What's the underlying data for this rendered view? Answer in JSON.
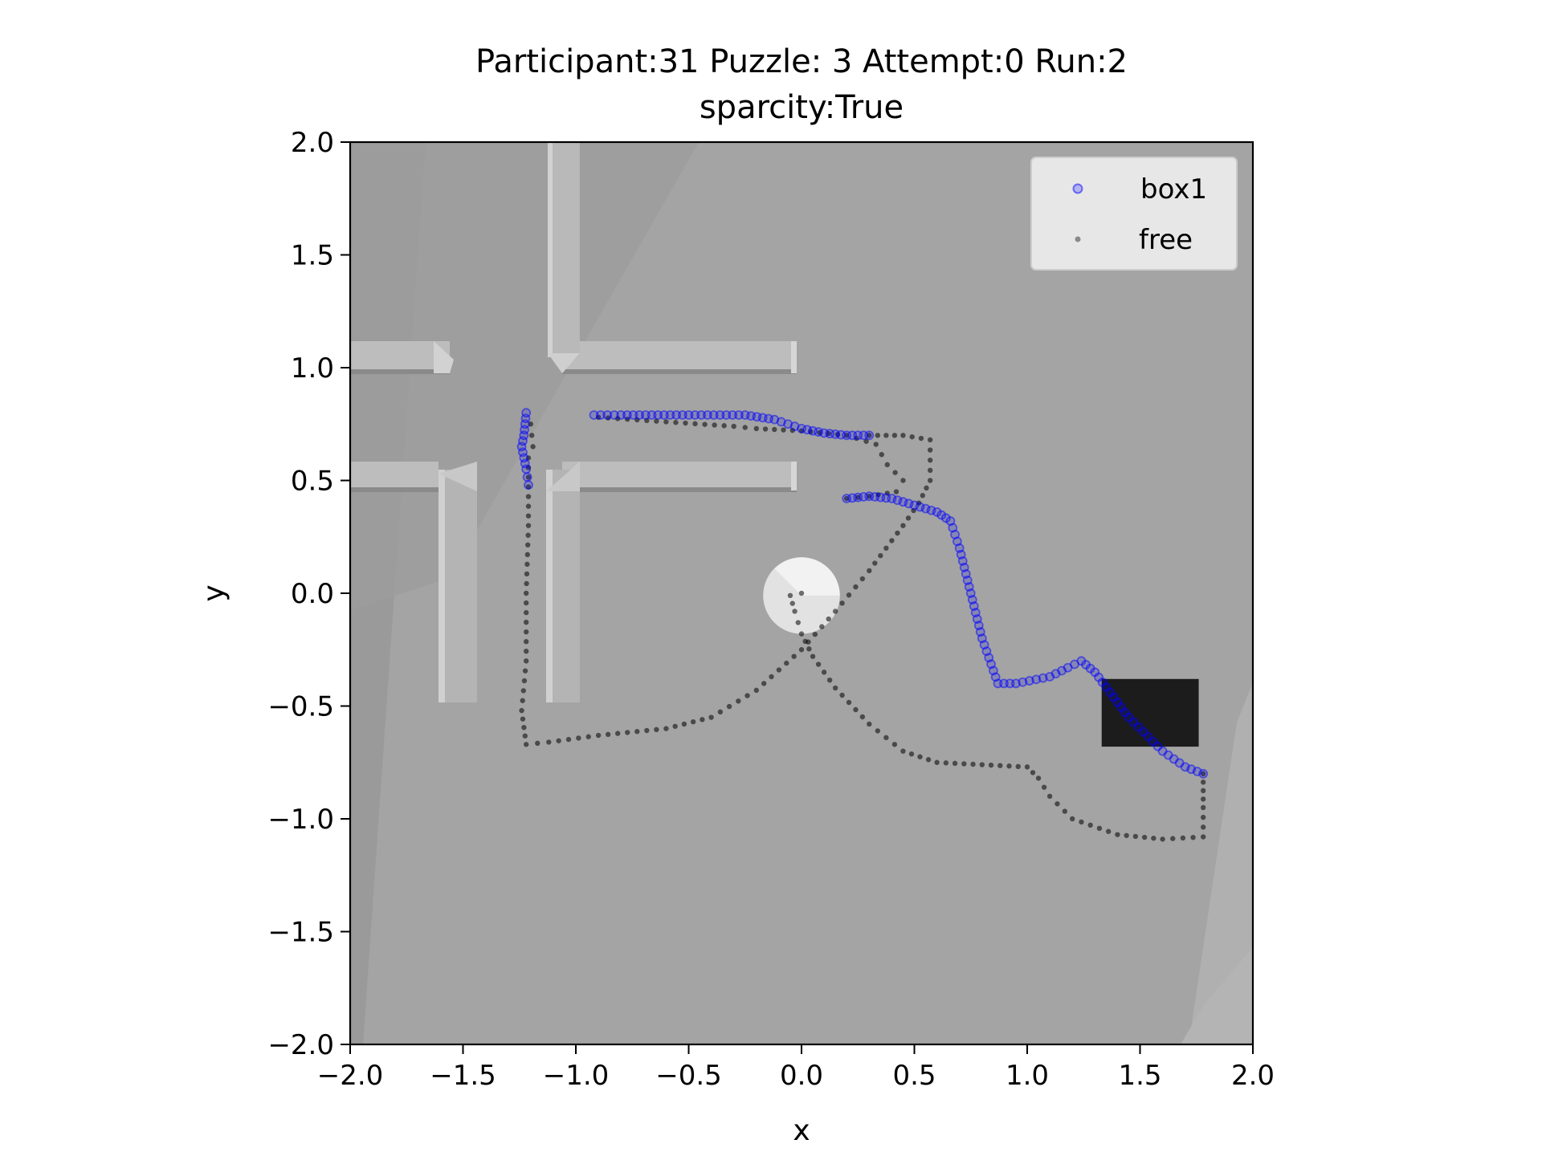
{
  "chart_data": {
    "type": "scatter",
    "title_line1": "Participant:31 Puzzle: 3 Attempt:0 Run:2",
    "title_line2": "sparcity:True",
    "xlabel": "x",
    "ylabel": "y",
    "xlim": [
      -2.0,
      2.0
    ],
    "ylim": [
      -2.0,
      2.0
    ],
    "x_ticks": [
      -2.0,
      -1.5,
      -1.0,
      -0.5,
      0.0,
      0.5,
      1.0,
      1.5,
      2.0
    ],
    "y_ticks": [
      -2.0,
      -1.5,
      -1.0,
      -0.5,
      0.0,
      0.5,
      1.0,
      1.5,
      2.0
    ],
    "x_tick_labels": [
      "−2.0",
      "−1.5",
      "−1.0",
      "−0.5",
      "0.0",
      "0.5",
      "1.0",
      "1.5",
      "2.0"
    ],
    "y_tick_labels": [
      "−2.0",
      "−1.5",
      "−1.0",
      "−0.5",
      "0.0",
      "0.5",
      "1.0",
      "1.5",
      "2.0"
    ],
    "grid": false,
    "legend_position": "top-right",
    "background_image": "top-down grey maze floor with cross-shaped walls, white circular goal marker, dark box",
    "series": [
      {
        "name": "box1",
        "color": "#0000ff",
        "marker": "hollow-circle",
        "paths": [
          [
            [
              -1.22,
              0.8
            ],
            [
              -1.23,
              0.7
            ],
            [
              -1.24,
              0.65
            ],
            [
              -1.22,
              0.55
            ],
            [
              -1.21,
              0.48
            ]
          ],
          [
            [
              -0.92,
              0.79
            ],
            [
              -0.8,
              0.79
            ],
            [
              -0.5,
              0.79
            ],
            [
              -0.25,
              0.79
            ],
            [
              -0.12,
              0.77
            ],
            [
              0.0,
              0.73
            ],
            [
              0.1,
              0.71
            ],
            [
              0.2,
              0.7
            ],
            [
              0.3,
              0.7
            ]
          ],
          [
            [
              0.2,
              0.42
            ],
            [
              0.3,
              0.43
            ],
            [
              0.4,
              0.42
            ],
            [
              0.5,
              0.39
            ],
            [
              0.6,
              0.36
            ],
            [
              0.66,
              0.32
            ],
            [
              0.7,
              0.2
            ],
            [
              0.75,
              0.0
            ],
            [
              0.8,
              -0.2
            ],
            [
              0.87,
              -0.4
            ],
            [
              0.95,
              -0.4
            ],
            [
              1.1,
              -0.37
            ],
            [
              1.18,
              -0.33
            ],
            [
              1.24,
              -0.3
            ],
            [
              1.3,
              -0.35
            ],
            [
              1.45,
              -0.55
            ],
            [
              1.6,
              -0.7
            ],
            [
              1.7,
              -0.77
            ],
            [
              1.78,
              -0.8
            ]
          ]
        ]
      },
      {
        "name": "free",
        "color": "#000000",
        "marker": "dot",
        "paths": [
          [
            [
              -1.2,
              0.75
            ],
            [
              -1.19,
              0.65
            ]
          ],
          [
            [
              -1.21,
              0.6
            ],
            [
              -1.21,
              0.3
            ],
            [
              -1.22,
              0.0
            ],
            [
              -1.22,
              -0.3
            ],
            [
              -1.24,
              -0.52
            ],
            [
              -1.22,
              -0.67
            ],
            [
              -1.12,
              -0.66
            ],
            [
              -0.9,
              -0.63
            ],
            [
              -0.6,
              -0.6
            ],
            [
              -0.4,
              -0.55
            ],
            [
              -0.2,
              -0.43
            ],
            [
              0.0,
              -0.25
            ],
            [
              0.15,
              -0.08
            ],
            [
              0.3,
              0.1
            ],
            [
              0.45,
              0.3
            ],
            [
              0.52,
              0.4
            ],
            [
              0.57,
              0.5
            ],
            [
              0.57,
              0.68
            ],
            [
              0.45,
              0.7
            ],
            [
              0.3,
              0.7
            ]
          ],
          [
            [
              -0.9,
              0.78
            ],
            [
              -0.6,
              0.76
            ],
            [
              -0.3,
              0.74
            ],
            [
              -0.2,
              0.73
            ],
            [
              0.0,
              0.72
            ],
            [
              0.2,
              0.7
            ],
            [
              0.33,
              0.66
            ],
            [
              0.38,
              0.57
            ],
            [
              0.45,
              0.5
            ],
            [
              0.42,
              0.45
            ],
            [
              0.3,
              0.43
            ],
            [
              0.2,
              0.42
            ]
          ],
          [
            [
              0.0,
              0.0
            ],
            [
              -0.05,
              -0.01
            ],
            [
              -0.03,
              -0.08
            ],
            [
              0.0,
              -0.18
            ],
            [
              0.05,
              -0.28
            ],
            [
              0.15,
              -0.42
            ],
            [
              0.3,
              -0.58
            ],
            [
              0.45,
              -0.7
            ],
            [
              0.6,
              -0.75
            ],
            [
              0.8,
              -0.76
            ],
            [
              1.0,
              -0.77
            ],
            [
              1.05,
              -0.82
            ],
            [
              1.1,
              -0.9
            ],
            [
              1.2,
              -1.0
            ],
            [
              1.4,
              -1.07
            ],
            [
              1.6,
              -1.09
            ],
            [
              1.78,
              -1.08
            ],
            [
              1.78,
              -0.95
            ],
            [
              1.78,
              -0.8
            ]
          ]
        ]
      }
    ],
    "objects": [
      {
        "name": "goal-circle",
        "x": 0.0,
        "y": -0.01,
        "r": 0.17
      },
      {
        "name": "box",
        "x0": 1.33,
        "x1": 1.76,
        "y0": -0.68,
        "y1": -0.38
      }
    ]
  }
}
